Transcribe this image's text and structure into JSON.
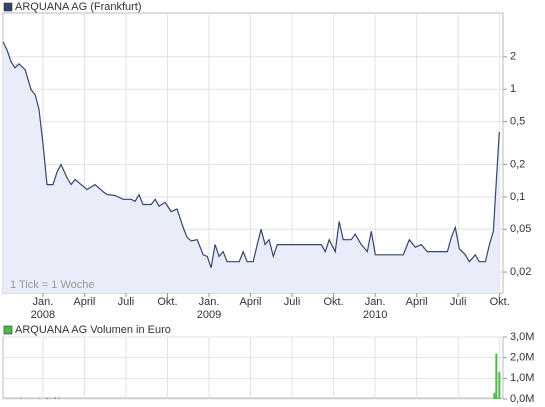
{
  "chart_data": [
    {
      "type": "line",
      "annotation": "1 Tick = 1 Woche",
      "log_scale": true,
      "grid": true,
      "fill_color": "#e9edf9",
      "xlim": [
        2007.76,
        2010.77
      ],
      "xticks": [
        {
          "value": 2008.0,
          "label": "Jan."
        },
        {
          "value": 2008.25,
          "label": "April"
        },
        {
          "value": 2008.5,
          "label": "Juli"
        },
        {
          "value": 2008.75,
          "label": "Okt."
        },
        {
          "value": 2009.0,
          "label": "Jan."
        },
        {
          "value": 2009.25,
          "label": "April"
        },
        {
          "value": 2009.5,
          "label": "Juli"
        },
        {
          "value": 2009.75,
          "label": "Okt."
        },
        {
          "value": 2010.0,
          "label": "Jan."
        },
        {
          "value": 2010.25,
          "label": "April"
        },
        {
          "value": 2010.5,
          "label": "Juli"
        },
        {
          "value": 2010.75,
          "label": "Okt."
        }
      ],
      "xticks_year": [
        {
          "value": 2008,
          "label": "2008"
        },
        {
          "value": 2009,
          "label": "2009"
        },
        {
          "value": 2010,
          "label": "2010"
        }
      ],
      "ylim": [
        0.0128,
        5.1
      ],
      "yticks": [
        2,
        1,
        {
          "value": 0.5,
          "label": "0,5"
        },
        {
          "value": 0.2,
          "label": "0,2"
        },
        {
          "value": 0.1,
          "label": "0,1"
        },
        {
          "value": 0.05,
          "label": "0,05"
        },
        {
          "value": 0.02,
          "label": "0,02"
        }
      ],
      "x": [
        2007.76,
        2007.784,
        2007.808,
        2007.832,
        2007.856,
        2007.893,
        2007.929,
        2007.953,
        2007.977,
        2008.001,
        2008.025,
        2008.061,
        2008.085,
        2008.109,
        2008.146,
        2008.17,
        2008.194,
        2008.23,
        2008.266,
        2008.314,
        2008.362,
        2008.387,
        2008.435,
        2008.483,
        2008.531,
        2008.555,
        2008.579,
        2008.603,
        2008.652,
        2008.676,
        2008.7,
        2008.736,
        2008.772,
        2008.808,
        2008.844,
        2008.868,
        2008.893,
        2008.929,
        2008.965,
        2008.989,
        2009.013,
        2009.037,
        2009.061,
        2009.085,
        2009.109,
        2009.182,
        2009.206,
        2009.23,
        2009.266,
        2009.29,
        2009.314,
        2009.338,
        2009.362,
        2009.387,
        2009.411,
        2009.676,
        2009.7,
        2009.724,
        2009.76,
        2009.784,
        2009.808,
        2009.856,
        2009.88,
        2009.917,
        2009.953,
        2009.977,
        2010.001,
        2010.17,
        2010.206,
        2010.242,
        2010.278,
        2010.314,
        2010.435,
        2010.459,
        2010.483,
        2010.507,
        2010.543,
        2010.567,
        2010.603,
        2010.627,
        2010.664,
        2010.688,
        2010.712,
        2010.73,
        2010.748
      ],
      "series": [
        {
          "name": "ARQUANA AG (Frankfurt)",
          "color": "#34456b",
          "values": [
            2.75,
            2.32,
            1.8,
            1.58,
            1.72,
            1.52,
            0.99,
            0.89,
            0.65,
            0.31,
            0.13,
            0.13,
            0.17,
            0.2,
            0.15,
            0.13,
            0.145,
            0.13,
            0.117,
            0.13,
            0.112,
            0.105,
            0.103,
            0.095,
            0.095,
            0.091,
            0.105,
            0.085,
            0.085,
            0.095,
            0.082,
            0.089,
            0.073,
            0.077,
            0.052,
            0.042,
            0.039,
            0.04,
            0.029,
            0.028,
            0.022,
            0.036,
            0.028,
            0.031,
            0.025,
            0.025,
            0.031,
            0.025,
            0.025,
            0.036,
            0.05,
            0.036,
            0.04,
            0.028,
            0.036,
            0.036,
            0.031,
            0.04,
            0.031,
            0.059,
            0.04,
            0.04,
            0.045,
            0.036,
            0.031,
            0.048,
            0.029,
            0.029,
            0.04,
            0.034,
            0.036,
            0.031,
            0.031,
            0.042,
            0.052,
            0.033,
            0.029,
            0.025,
            0.029,
            0.025,
            0.025,
            0.036,
            0.048,
            0.145,
            0.4
          ]
        }
      ]
    },
    {
      "type": "bar",
      "xlim": [
        2007.76,
        2010.77
      ],
      "ylim": [
        0,
        3000000
      ],
      "yticks": [
        {
          "value": 3000000,
          "label": "3,0M"
        },
        {
          "value": 2000000,
          "label": "2,0M"
        },
        {
          "value": 1000000,
          "label": "1,0M"
        },
        {
          "value": 0,
          "label": "0,0M"
        }
      ],
      "x": [
        2007.868,
        2007.977,
        2008.025,
        2008.073,
        2008.097,
        2010.718,
        2010.73,
        2010.748
      ],
      "series": [
        {
          "name": "ARQUANA AG Volumen in Euro",
          "color": "#4cb84c",
          "values": [
            30000,
            20000,
            40000,
            60000,
            30000,
            300000,
            2200000,
            1300000
          ]
        }
      ]
    }
  ]
}
